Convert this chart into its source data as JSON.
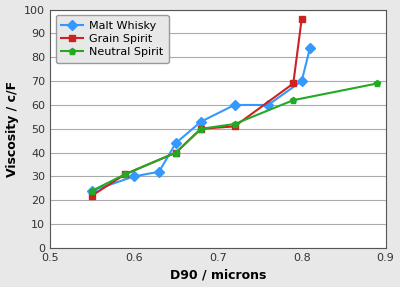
{
  "malt_whisky": {
    "x": [
      0.55,
      0.6,
      0.63,
      0.65,
      0.68,
      0.72,
      0.76,
      0.8,
      0.81
    ],
    "y": [
      24,
      30,
      32,
      44,
      53,
      60,
      60,
      70,
      84
    ],
    "color": "#3399ff",
    "label": "Malt Whisky",
    "marker": "D",
    "markersize": 5
  },
  "grain_spirit": {
    "x": [
      0.55,
      0.59,
      0.65,
      0.68,
      0.72,
      0.79,
      0.8
    ],
    "y": [
      22,
      31,
      40,
      50,
      51,
      69,
      96
    ],
    "color": "#cc2222",
    "label": "Grain Spirit",
    "marker": "s",
    "markersize": 5
  },
  "neutral_spirit": {
    "x": [
      0.55,
      0.59,
      0.65,
      0.68,
      0.72,
      0.79,
      0.89
    ],
    "y": [
      24,
      31,
      40,
      50,
      52,
      62,
      69
    ],
    "color": "#22aa22",
    "label": "Neutral Spirit",
    "marker": "p",
    "markersize": 5
  },
  "xlabel": "D90 / microns",
  "ylabel": "Viscosity / c/F",
  "xlim": [
    0.5,
    0.9
  ],
  "ylim": [
    0,
    100
  ],
  "xticks": [
    0.5,
    0.6,
    0.7,
    0.8,
    0.9
  ],
  "yticks": [
    0,
    10,
    20,
    30,
    40,
    50,
    60,
    70,
    80,
    90,
    100
  ],
  "figure_bg": "#e8e8e8",
  "plot_bg": "#ffffff",
  "grid_color": "#aaaaaa",
  "spine_color": "#555555"
}
